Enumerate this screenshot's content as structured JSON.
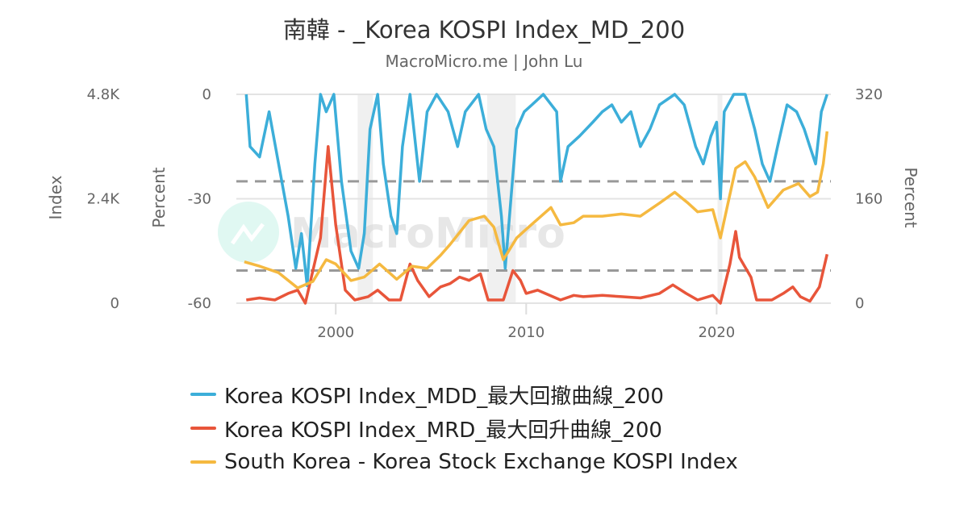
{
  "chart_data": {
    "type": "line",
    "title": "南韓 - _Korea KOSPI Index_MD_200",
    "subtitle": "MacroMicro.me | John Lu",
    "watermark": "MacroMicro",
    "x_ticks": [
      "2000",
      "2010",
      "2020"
    ],
    "xlim": [
      1994.78,
      2026.0
    ],
    "grid": true,
    "legend_placement": "bottom",
    "axes": {
      "index": {
        "label": "Index",
        "ticks": [
          "0",
          "2.4K",
          "4.8K"
        ],
        "range": [
          0,
          4800
        ]
      },
      "percent_left": {
        "label": "Percent",
        "ticks": [
          "-60",
          "-30",
          "0"
        ],
        "range": [
          -60,
          0
        ]
      },
      "percent_right": {
        "label": "Percent",
        "ticks": [
          "0",
          "160",
          "320"
        ],
        "range": [
          0,
          320
        ]
      }
    },
    "reference_lines": [
      {
        "axis": "percent_left",
        "value": -25,
        "style": "dashed"
      },
      {
        "axis": "percent_right",
        "value": 50,
        "style": "dashed"
      }
    ],
    "shaded_periods": [
      [
        2001.15,
        2001.95
      ],
      [
        2007.95,
        2009.45
      ],
      [
        2020.05,
        2020.3
      ]
    ],
    "series": [
      {
        "name": "Korea KOSPI Index_MDD_最大回撤曲線_200",
        "axis": "percent_left",
        "color": "#3caed9",
        "x": [
          1995.3,
          1995.5,
          1996,
          1996.5,
          1997,
          1997.5,
          1997.9,
          1998.2,
          1998.5,
          1998.9,
          1999.2,
          1999.5,
          1999.9,
          2000.3,
          2000.8,
          2001.2,
          2001.5,
          2001.8,
          2002.2,
          2002.5,
          2002.9,
          2003.2,
          2003.5,
          2003.9,
          2004.4,
          2004.8,
          2005.3,
          2005.9,
          2006.4,
          2006.8,
          2007.5,
          2007.9,
          2008.3,
          2008.7,
          2008.9,
          2009.2,
          2009.5,
          2009.9,
          2010.3,
          2010.9,
          2011.6,
          2011.8,
          2012.2,
          2012.8,
          2013.5,
          2014,
          2014.5,
          2015,
          2015.5,
          2016,
          2016.5,
          2017,
          2017.8,
          2018.3,
          2018.9,
          2019.3,
          2019.7,
          2020.0,
          2020.2,
          2020.4,
          2020.9,
          2021.5,
          2022,
          2022.4,
          2022.8,
          2023.2,
          2023.7,
          2024.2,
          2024.6,
          2024.9,
          2025.2,
          2025.5,
          2025.8
        ],
        "y": [
          0,
          -15,
          -18,
          -5,
          -20,
          -35,
          -50,
          -40,
          -55,
          -20,
          0,
          -5,
          0,
          -25,
          -45,
          -50,
          -40,
          -10,
          0,
          -20,
          -35,
          -40,
          -15,
          0,
          -25,
          -5,
          0,
          -5,
          -15,
          -5,
          0,
          -10,
          -15,
          -35,
          -50,
          -30,
          -10,
          -5,
          -3,
          0,
          -5,
          -25,
          -15,
          -12,
          -8,
          -5,
          -3,
          -8,
          -5,
          -15,
          -10,
          -3,
          0,
          -3,
          -15,
          -20,
          -12,
          -8,
          -30,
          -5,
          0,
          0,
          -10,
          -20,
          -25,
          -15,
          -3,
          -5,
          -10,
          -15,
          -20,
          -5,
          0
        ]
      },
      {
        "name": "Korea KOSPI Index_MRD_最大回升曲線_200",
        "axis": "percent_right",
        "color": "#e8553a",
        "x": [
          1995.3,
          1996,
          1996.8,
          1997.5,
          1998,
          1998.4,
          1998.8,
          1999.2,
          1999.6,
          2000,
          2000.5,
          2001,
          2001.7,
          2002.2,
          2002.8,
          2003.4,
          2003.9,
          2004.3,
          2004.9,
          2005.5,
          2006,
          2006.5,
          2007,
          2007.6,
          2008,
          2008.8,
          2009.3,
          2009.7,
          2010,
          2010.6,
          2011,
          2011.8,
          2012.5,
          2013,
          2014,
          2015,
          2016,
          2017,
          2017.7,
          2018.4,
          2019,
          2019.8,
          2020.2,
          2020.7,
          2021.0,
          2021.2,
          2021.8,
          2022.1,
          2022.9,
          2023.5,
          2024,
          2024.4,
          2024.9,
          2025.4,
          2025.8
        ],
        "y": [
          5,
          8,
          5,
          15,
          20,
          0,
          50,
          100,
          240,
          120,
          20,
          5,
          10,
          20,
          5,
          5,
          60,
          35,
          10,
          25,
          30,
          40,
          35,
          45,
          5,
          5,
          50,
          35,
          15,
          20,
          15,
          5,
          12,
          10,
          12,
          10,
          8,
          15,
          28,
          15,
          5,
          12,
          0,
          60,
          110,
          70,
          40,
          5,
          5,
          15,
          25,
          10,
          3,
          25,
          75
        ]
      },
      {
        "name": "South Korea - Korea Stock Exchange KOSPI Index",
        "axis": "index",
        "color": "#f5b940",
        "x": [
          1995.2,
          1996,
          1997,
          1998,
          1998.8,
          1999.5,
          2000,
          2000.8,
          2001.5,
          2002.3,
          2003.2,
          2004,
          2004.8,
          2005.5,
          2006,
          2007,
          2007.8,
          2008.3,
          2008.8,
          2009.5,
          2010,
          2011.3,
          2011.8,
          2012.5,
          2013,
          2014,
          2015,
          2016,
          2017,
          2017.8,
          2018.5,
          2019,
          2019.8,
          2020.2,
          2020.6,
          2021,
          2021.5,
          2022,
          2022.7,
          2023.5,
          2024.3,
          2024.9,
          2025.3,
          2025.6,
          2025.8
        ],
        "y": [
          950,
          850,
          700,
          350,
          500,
          1000,
          900,
          520,
          600,
          900,
          550,
          850,
          800,
          1100,
          1350,
          1900,
          2000,
          1750,
          1000,
          1500,
          1700,
          2200,
          1800,
          1850,
          2000,
          2000,
          2050,
          2000,
          2300,
          2550,
          2300,
          2100,
          2150,
          1500,
          2300,
          3100,
          3250,
          2900,
          2200,
          2600,
          2750,
          2450,
          2550,
          3200,
          3950
        ]
      }
    ]
  }
}
